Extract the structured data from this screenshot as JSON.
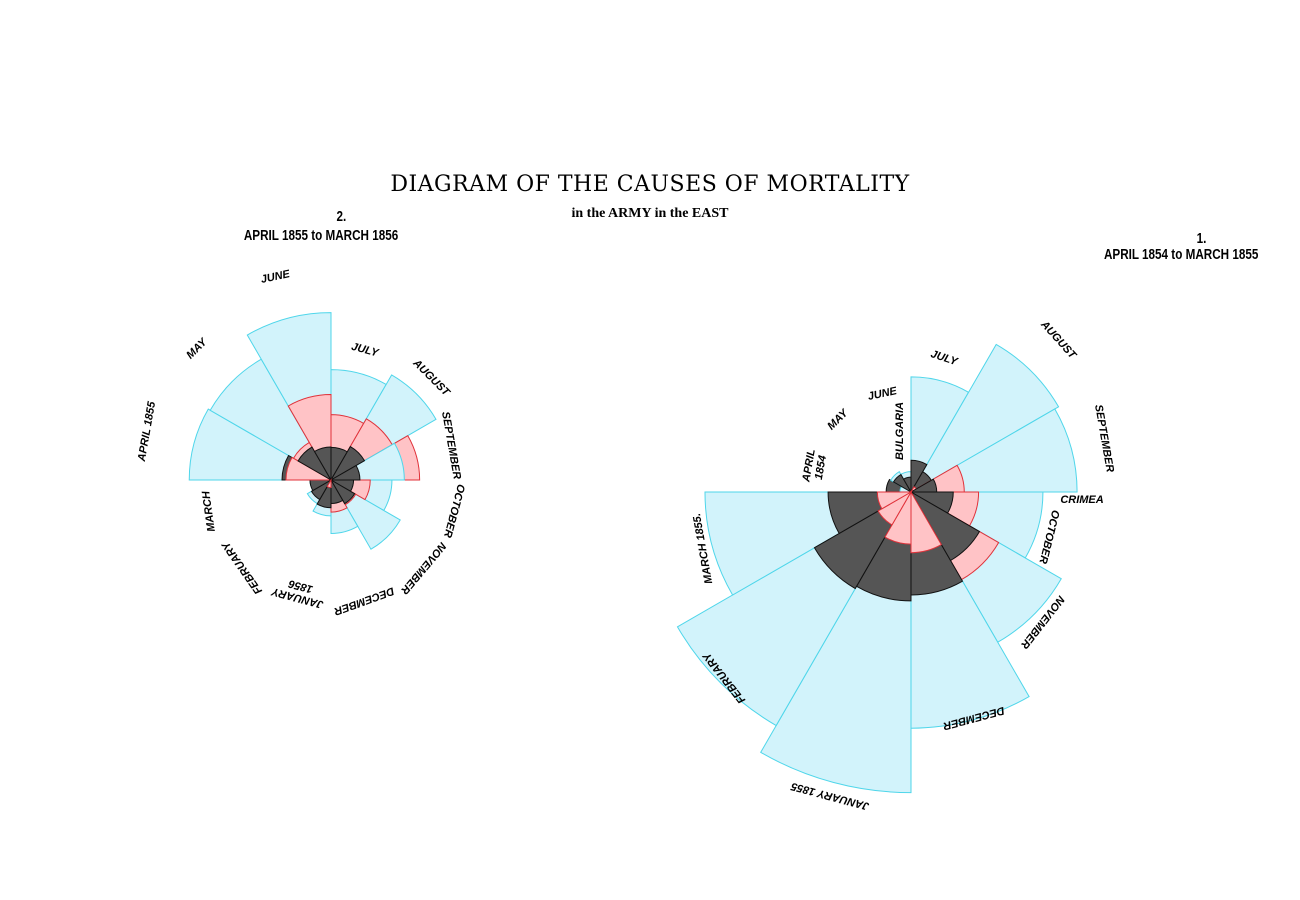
{
  "title": "DIAGRAM OF THE CAUSES OF MORTALITY",
  "subtitle": "in the ARMY in the EAST",
  "colors": {
    "disease_fill": "#d2f3fb",
    "disease_stroke": "#4fd6ea",
    "wounds_fill": "#ffc3c6",
    "wounds_stroke": "#e0323a",
    "other_fill": "#555555",
    "other_stroke": "#111111"
  },
  "chart_data": [
    {
      "type": "polar-area",
      "panel_number": "1.",
      "period": "APRIL 1854 to MARCH 1855",
      "months": [
        "APRIL 1854",
        "MAY",
        "JUNE",
        "JULY",
        "AUGUST",
        "SEPTEMBER",
        "OCTOBER",
        "NOVEMBER",
        "DECEMBER",
        "JANUARY 1855",
        "FEBRUARY",
        "MARCH 1855."
      ],
      "month_labels": [
        "APRIL\n1854",
        "MAY",
        "JUNE",
        "JULY",
        "AUGUST",
        "SEPTEMBER",
        "OCTOBER",
        "NOVEMBER",
        "DECEMBER",
        "JANUARY 1855",
        "FEBRUARY",
        "MARCH 1855."
      ],
      "place_labels": [
        "BULGARIA",
        "CRIMEA"
      ],
      "series": [
        {
          "name": "disease",
          "values": [
            1.4,
            6.2,
            4.7,
            150,
            328.5,
            312.2,
            197,
            340.6,
            631.5,
            1022.8,
            822.8,
            480.3
          ]
        },
        {
          "name": "wounds",
          "values": [
            0,
            0,
            0,
            0,
            0.4,
            32.1,
            51.7,
            115.8,
            41.7,
            30.7,
            16.3,
            12.8
          ]
        },
        {
          "name": "other",
          "values": [
            7,
            4.6,
            2.5,
            11.4,
            6.2,
            7.5,
            20.2,
            70.8,
            120,
            134.3,
            140.6,
            77.8
          ]
        }
      ]
    },
    {
      "type": "polar-area",
      "panel_number": "2.",
      "period": "APRIL 1855 to MARCH 1856",
      "months": [
        "APRIL 1855",
        "MAY",
        "JUNE",
        "JULY",
        "AUGUST",
        "SEPTEMBER",
        "OCTOBER",
        "NOVEMBER",
        "DECEMBER",
        "JANUARY 1856",
        "FEBRUARY",
        "MARCH"
      ],
      "month_labels": [
        "APRIL 1855",
        "MAY",
        "JUNE",
        "JULY",
        "AUGUST",
        "SEPTEMBER",
        "OCTOBER",
        "NOVEMBER",
        "DECEMBER",
        "JANUARY\n1856",
        "FEBRUARY",
        "MARCH"
      ],
      "series": [
        {
          "name": "disease",
          "values": [
            177.5,
            171.8,
            247.6,
            107.5,
            129.9,
            47.5,
            32.8,
            56.4,
            25.3,
            11.4,
            6.6,
            3.9
          ]
        },
        {
          "name": "wounds",
          "values": [
            17.9,
            16.6,
            64.5,
            37.7,
            44.1,
            69.4,
            13.6,
            7.2,
            9.1,
            0.5,
            0,
            0
          ]
        },
        {
          "name": "other",
          "values": [
            21.2,
            12.8,
            9.6,
            9.4,
            13.2,
            7.4,
            4.5,
            6.6,
            4.9,
            6.8,
            4.5,
            3.9
          ]
        }
      ]
    }
  ]
}
